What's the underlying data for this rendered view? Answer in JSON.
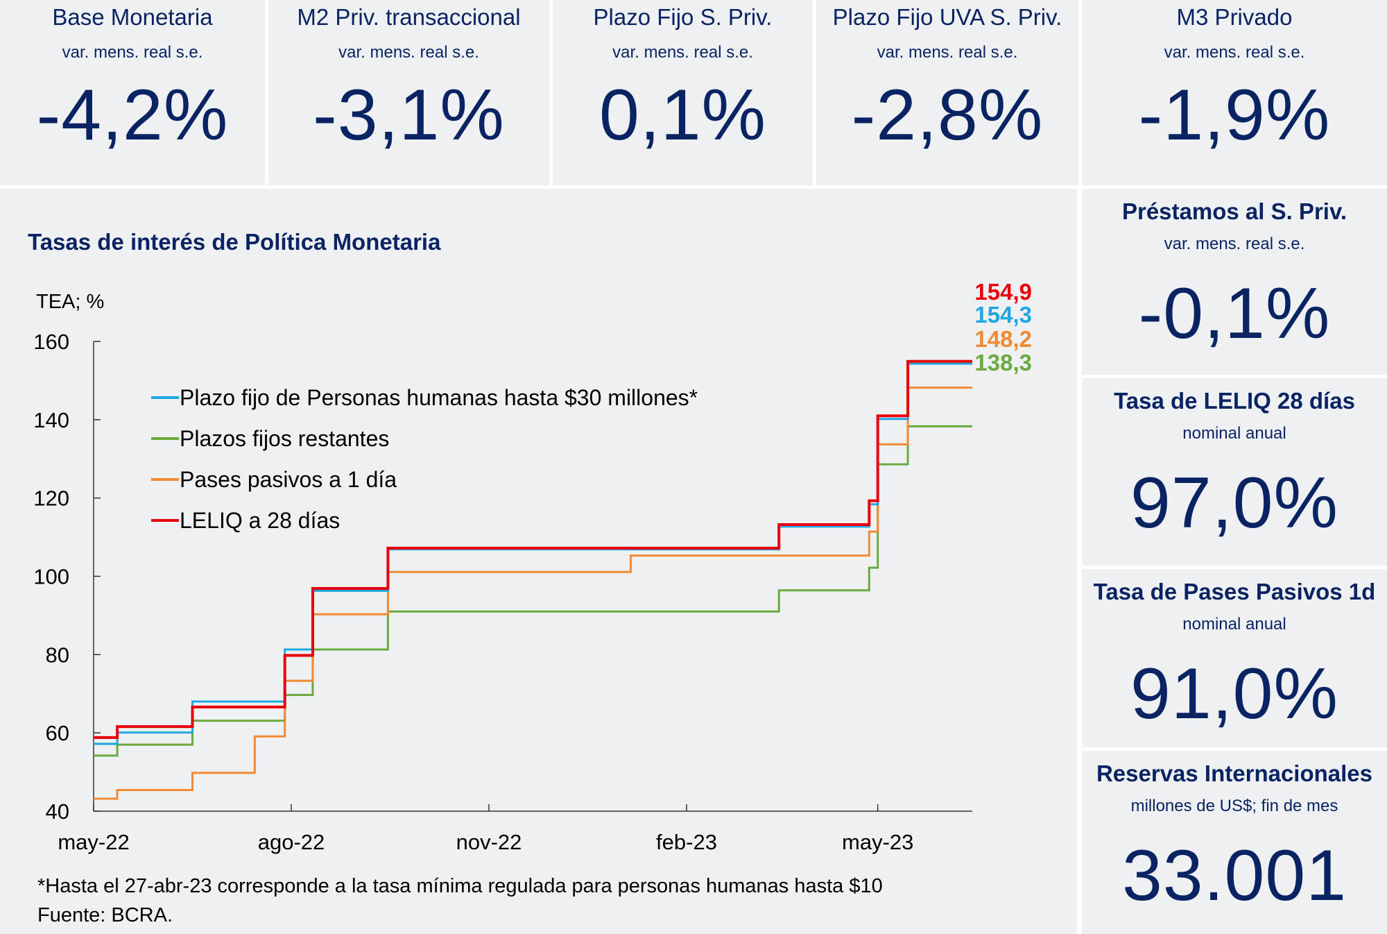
{
  "top_cards": [
    {
      "title": "Base Monetaria",
      "subtitle": "var. mens. real s.e.",
      "value": "-4,2%"
    },
    {
      "title": "M2 Priv. transaccional",
      "subtitle": "var. mens. real s.e.",
      "value": "-3,1%"
    },
    {
      "title": "Plazo Fijo S. Priv.",
      "subtitle": "var. mens. real s.e.",
      "value": "0,1%"
    },
    {
      "title": "Plazo Fijo UVA S. Priv.",
      "subtitle": "var. mens. real s.e.",
      "value": "-2,8%"
    },
    {
      "title": "M3 Privado",
      "subtitle": "var. mens. real s.e.",
      "value": "-1,9%"
    }
  ],
  "side_cards": [
    {
      "title": "Préstamos al S. Priv.",
      "subtitle": "var. mens. real s.e.",
      "value": "-0,1%"
    },
    {
      "title": "Tasa de LELIQ 28 días",
      "subtitle": "nominal anual",
      "value": "97,0%"
    },
    {
      "title": "Tasa de Pases Pasivos 1d",
      "subtitle": "nominal anual",
      "value": "91,0%"
    },
    {
      "title": "Reservas Internacionales",
      "subtitle": "millones de US$; fin de mes",
      "value": "33.001"
    }
  ],
  "chart": {
    "title": "Tasas de interés de Política Monetaria",
    "footnote": "*Hasta el 27-abr-23 corresponde a la tasa mínima regulada para personas humanas hasta $10",
    "source": "Fuente: BCRA."
  },
  "chart_data": {
    "type": "line",
    "ylabel": "TEA; %",
    "ylim": [
      40,
      160
    ],
    "yticks": [
      40,
      60,
      80,
      100,
      120,
      140,
      160
    ],
    "xticks": [
      {
        "label": "may-22",
        "date": "2022-05-01"
      },
      {
        "label": "ago-22",
        "date": "2022-08-01"
      },
      {
        "label": "nov-22",
        "date": "2022-11-01"
      },
      {
        "label": "feb-23",
        "date": "2023-02-01"
      },
      {
        "label": "may-23",
        "date": "2023-05-01"
      }
    ],
    "xlim": [
      "2022-05-01",
      "2023-06-14"
    ],
    "series": [
      {
        "name": "Plazo fijo de Personas humanas hasta $30 millones*",
        "color": "#1ea7e1",
        "end_label": "154,3",
        "steps": [
          [
            "2022-05-01",
            57.2
          ],
          [
            "2022-05-12",
            60.1
          ],
          [
            "2022-06-16",
            68.0
          ],
          [
            "2022-07-29",
            81.3
          ],
          [
            "2022-08-11",
            96.3
          ],
          [
            "2022-09-15",
            106.9
          ],
          [
            "2023-03-16",
            112.7
          ],
          [
            "2023-04-27",
            118.4
          ],
          [
            "2023-05-01",
            140.2
          ],
          [
            "2023-05-15",
            154.3
          ],
          [
            "2023-06-14",
            154.3
          ]
        ]
      },
      {
        "name": "Plazos fijos restantes",
        "color": "#6aaa3f",
        "end_label": "138,3",
        "steps": [
          [
            "2022-05-01",
            54.2
          ],
          [
            "2022-05-12",
            57.0
          ],
          [
            "2022-06-16",
            63.1
          ],
          [
            "2022-07-29",
            69.7
          ],
          [
            "2022-08-11",
            81.3
          ],
          [
            "2022-09-15",
            91.0
          ],
          [
            "2023-03-16",
            96.4
          ],
          [
            "2023-04-27",
            102.2
          ],
          [
            "2023-05-01",
            128.6
          ],
          [
            "2023-05-15",
            138.3
          ],
          [
            "2023-06-14",
            138.3
          ]
        ]
      },
      {
        "name": "Pases pasivos a 1 día",
        "color": "#f08a33",
        "end_label": "148,2",
        "steps": [
          [
            "2022-05-01",
            43.2
          ],
          [
            "2022-05-12",
            45.4
          ],
          [
            "2022-06-16",
            49.8
          ],
          [
            "2022-07-15",
            59.1
          ],
          [
            "2022-07-29",
            73.3
          ],
          [
            "2022-08-11",
            90.3
          ],
          [
            "2022-09-15",
            101.1
          ],
          [
            "2023-01-06",
            105.3
          ],
          [
            "2023-04-27",
            111.4
          ],
          [
            "2023-05-01",
            133.7
          ],
          [
            "2023-05-15",
            148.2
          ],
          [
            "2023-06-14",
            148.2
          ]
        ]
      },
      {
        "name": "LELIQ a 28 días",
        "color": "#e8000b",
        "end_label": "154,9",
        "steps": [
          [
            "2022-05-01",
            58.8
          ],
          [
            "2022-05-12",
            61.6
          ],
          [
            "2022-06-16",
            66.6
          ],
          [
            "2022-07-29",
            79.8
          ],
          [
            "2022-08-11",
            96.9
          ],
          [
            "2022-09-15",
            107.2
          ],
          [
            "2023-03-16",
            113.2
          ],
          [
            "2023-04-27",
            119.3
          ],
          [
            "2023-05-01",
            141.0
          ],
          [
            "2023-05-15",
            154.9
          ],
          [
            "2023-06-14",
            154.9
          ]
        ]
      }
    ]
  }
}
